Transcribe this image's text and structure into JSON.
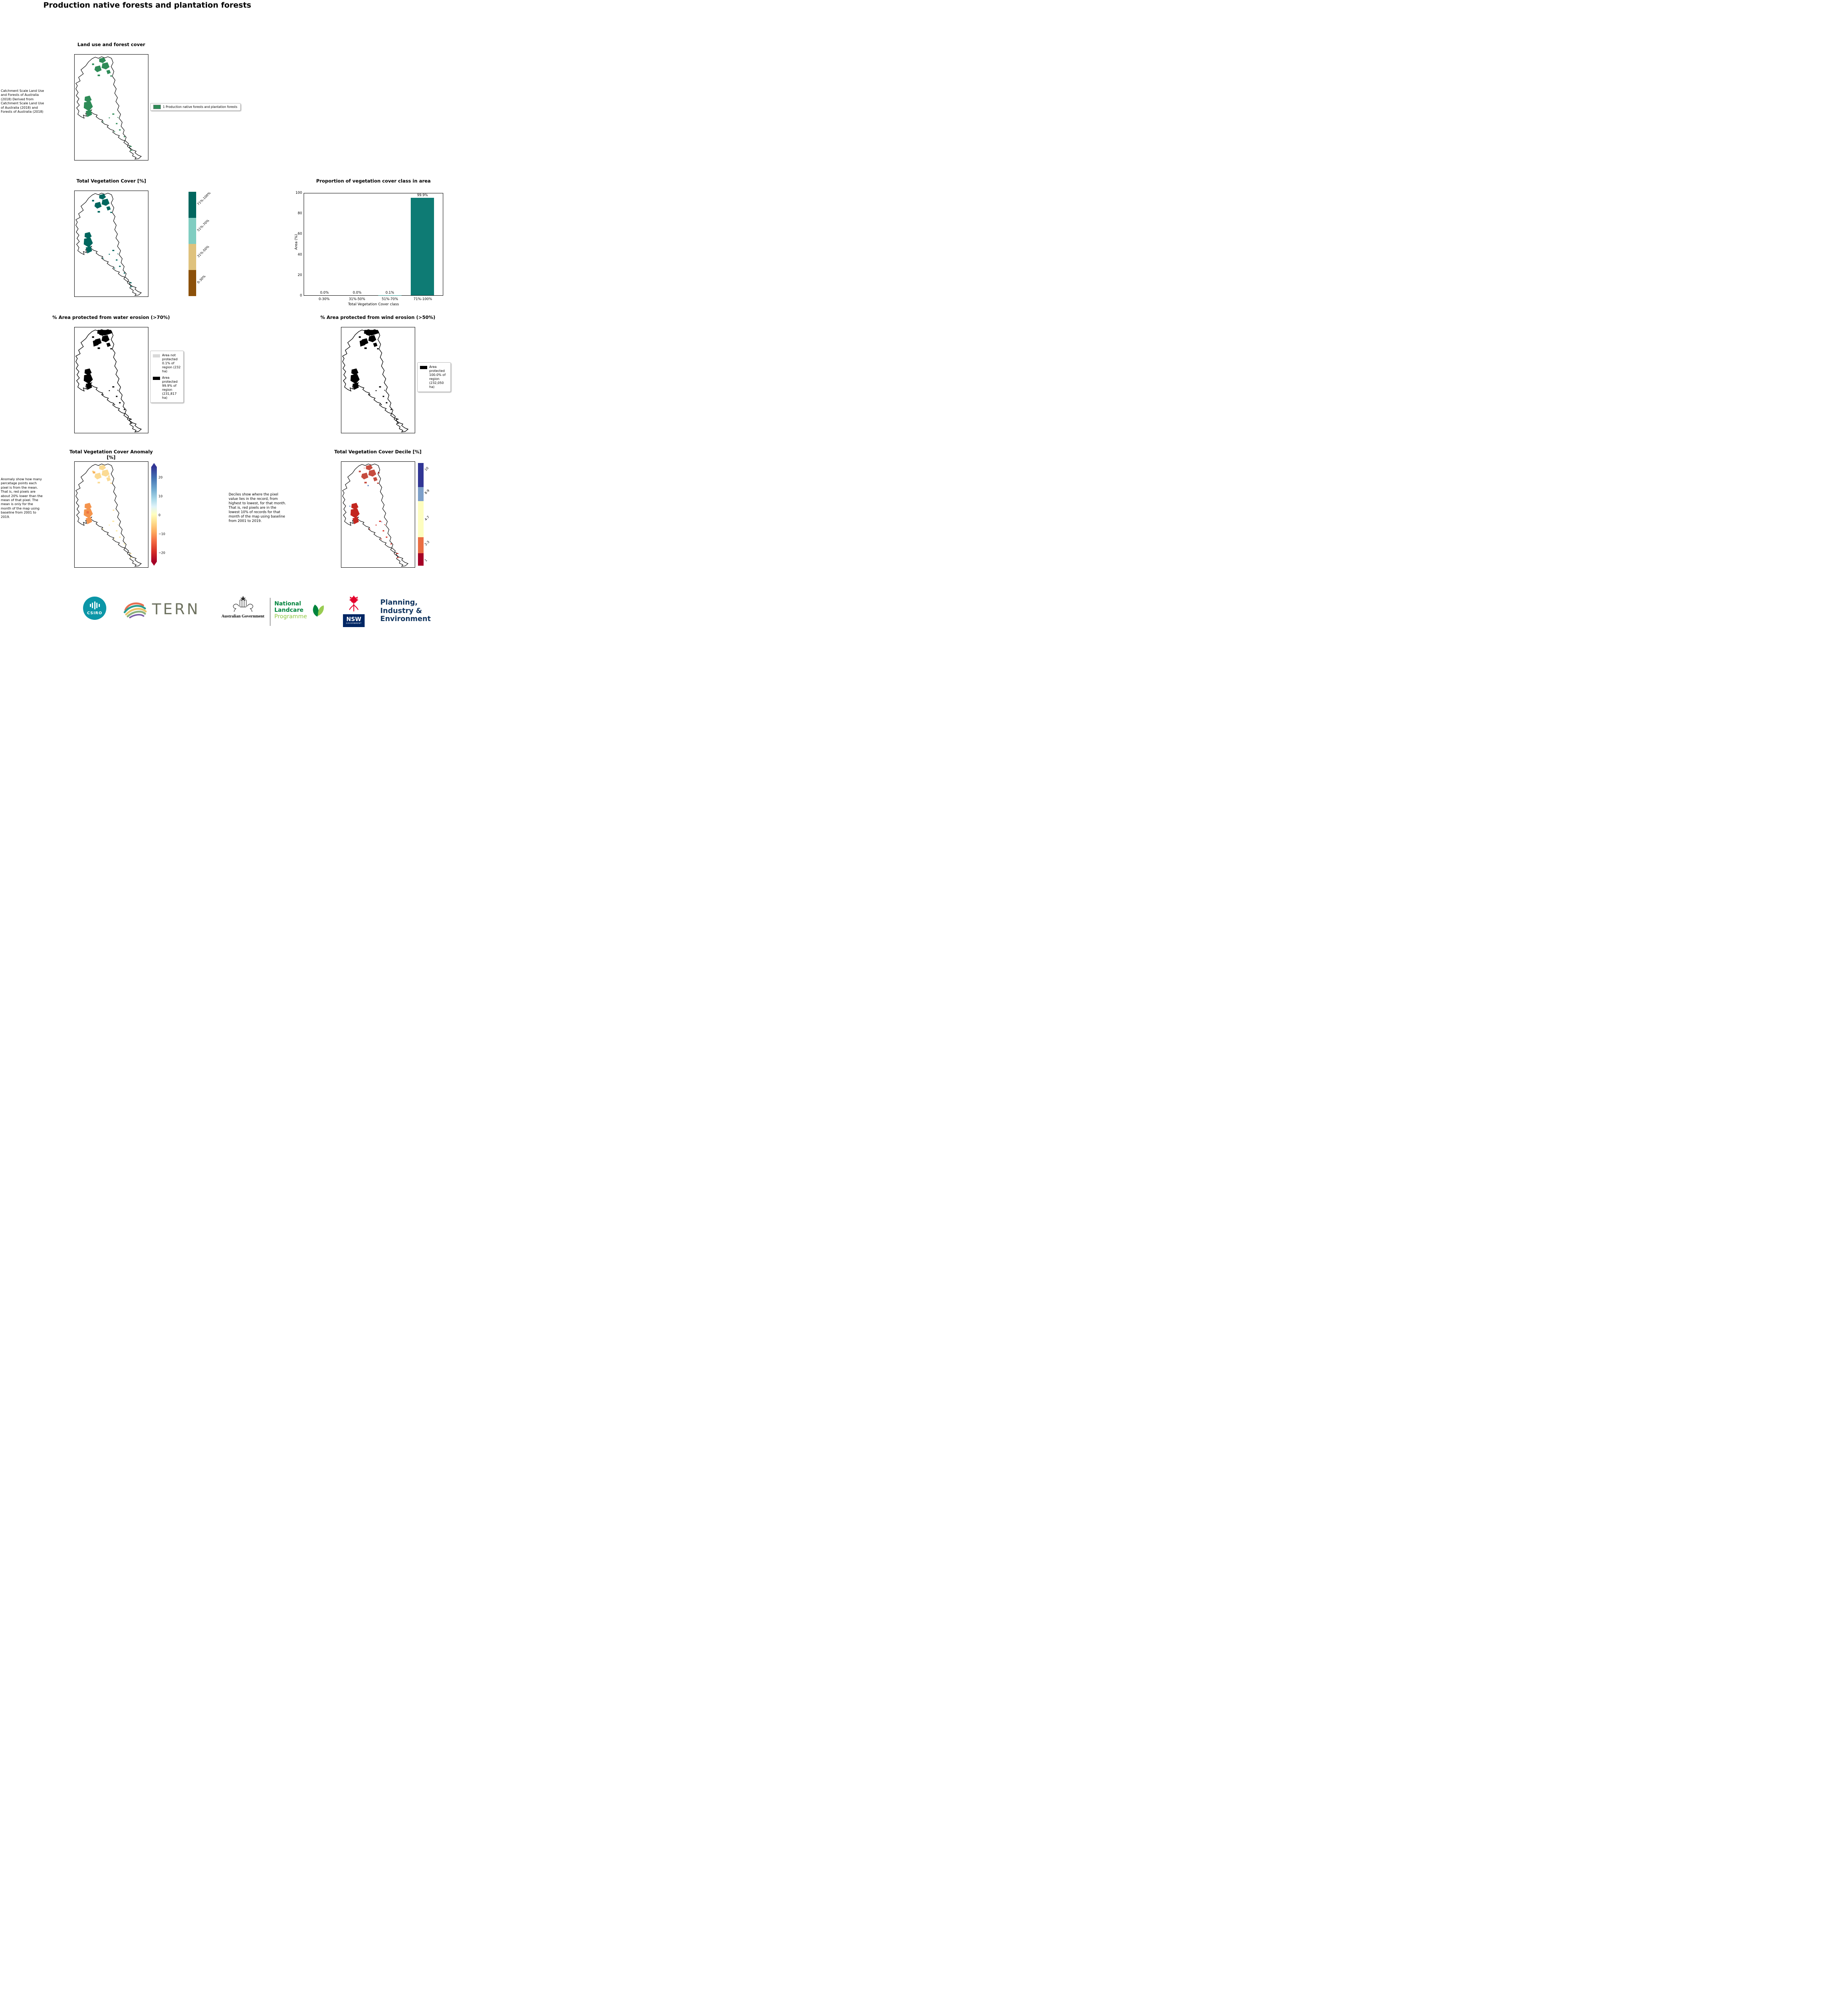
{
  "page": {
    "title": "Production native forests and plantation forests"
  },
  "land_use": {
    "title": "Land use and forest cover",
    "source_note": " Catchment Scale Land Use and Forests of Australia (2018) Derived from Catchment Scale Land Use of Australia (2018) and Forests of Australia (2018)",
    "legend": {
      "label": "1 Production native forests and plantation forests",
      "color": "#2e8b57"
    }
  },
  "veg_cover": {
    "title": "Total Vegetation Cover [%]",
    "colorbar": [
      {
        "label": "71%-100%",
        "color": "#01665e"
      },
      {
        "label": "51%-70%",
        "color": "#80cdc1"
      },
      {
        "label": "31%-50%",
        "color": "#dfc27d"
      },
      {
        "label": "0-30%",
        "color": "#8c510a"
      }
    ]
  },
  "chart_data": {
    "type": "bar",
    "title": "Proportion of vegetation cover class in area",
    "xlabel": "Total Vegetation Cover class",
    "ylabel": "Area (%)",
    "ylim": [
      0,
      100
    ],
    "yticks": [
      0,
      20,
      40,
      60,
      80,
      100
    ],
    "categories": [
      "0-30%",
      "31%-50%",
      "51%-70%",
      "71%-100%"
    ],
    "values": [
      0.0,
      0.0,
      0.1,
      99.9
    ],
    "value_labels": [
      "0.0%",
      "0.0%",
      "0.1%",
      "99.9%"
    ],
    "bar_color": "#0e7b74",
    "legend_position": "none",
    "grid": false
  },
  "water_erosion": {
    "title": "% Area protected from water erosion (>70%)",
    "legend": [
      {
        "label": "Area not protected 0.1% of region (232 ha)",
        "color": "#d9d9d9"
      },
      {
        "label": "Area protected 99.9% of region (231,817 ha)",
        "color": "#000000"
      }
    ]
  },
  "wind_erosion": {
    "title": "% Area protected from wind erosion (>50%)",
    "legend": [
      {
        "label": "Area protected 100.0% of region (232,050 ha)",
        "color": "#000000"
      }
    ]
  },
  "anomaly": {
    "title": "Total Vegetation Cover Anomaly [%]",
    "note": "Anomaly show how many percetage points each pixel is from the mean. That is, red pixels are about 20% lower than the mean of that pixel. The mean is only for the month of the map using baseline from 2001 to 2019.",
    "colorbar_ticks": [
      "20",
      "10",
      "0",
      "−10",
      "−20"
    ]
  },
  "decile": {
    "title": "Total Vegetation Cover Decile [%]",
    "note": "Deciles show where the pixel value lies in the record, from highest to lowest, for that month. That is, red pixels are in the lowest 10% of records for that month of the map using baseline from 2001 to 2019.",
    "colorbar": [
      {
        "label": "10",
        "color": "#313695"
      },
      {
        "label": "8-9",
        "color": "#7d9fc9"
      },
      {
        "label": "4-7",
        "color": "#fdfdbf"
      },
      {
        "label": "2-3",
        "color": "#ea6e43"
      },
      {
        "label": "1",
        "color": "#a50026"
      }
    ]
  },
  "footer": {
    "csiro": "CSIRO",
    "tern": "TERN",
    "aus_gov": "Australian Government",
    "landcare_lines": [
      "National",
      "Landcare",
      "Programme"
    ],
    "nsw": "NSW",
    "nsw_government": "GOVERNMENT",
    "dpie_lines": [
      "Planning,",
      "Industry &",
      "Environment"
    ]
  }
}
